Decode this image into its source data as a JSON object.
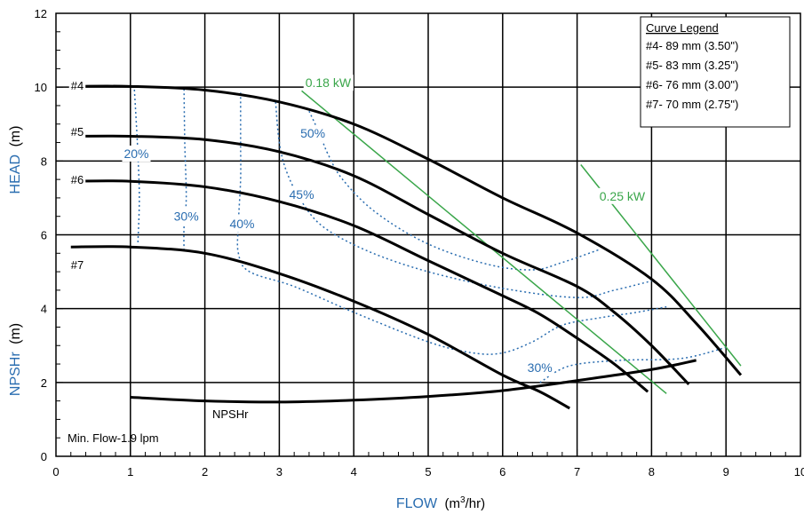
{
  "chart_data": {
    "type": "line",
    "xlim": [
      0,
      10
    ],
    "ylim": [
      0,
      12
    ],
    "x_ticks": [
      "0",
      "1",
      "2",
      "3",
      "4",
      "5",
      "6",
      "7",
      "8",
      "9",
      "10"
    ],
    "y_ticks": [
      "0",
      "2",
      "4",
      "6",
      "8",
      "10",
      "12"
    ],
    "grid": true,
    "xlabel": {
      "main": "FLOW",
      "unit_pre": "(m",
      "unit_sup": "3",
      "unit_post": "/hr)"
    },
    "ylabel_head": {
      "main": "HEAD",
      "unit": "(m)"
    },
    "ylabel_npsh": {
      "main": "NPSHr",
      "unit": "(m)"
    },
    "legend": {
      "title": "Curve Legend",
      "entries": [
        "#4- 89 mm (3.50\")",
        "#5- 83 mm (3.25\")",
        "#6- 76 mm (3.00\")",
        "#7- 70 mm (2.75\")"
      ]
    },
    "head_curves": [
      {
        "name": "#4",
        "label_at": [
          0.2,
          10.05
        ],
        "points": [
          [
            0.2,
            10.02
          ],
          [
            1,
            10.02
          ],
          [
            2,
            9.92
          ],
          [
            3,
            9.6
          ],
          [
            4,
            9.0
          ],
          [
            5,
            8.05
          ],
          [
            6,
            7.0
          ],
          [
            7,
            6.05
          ],
          [
            8,
            4.8
          ],
          [
            8.6,
            3.6
          ],
          [
            9.2,
            2.2
          ]
        ]
      },
      {
        "name": "#5",
        "label_at": [
          0.2,
          8.8
        ],
        "points": [
          [
            0.2,
            8.67
          ],
          [
            1,
            8.67
          ],
          [
            2,
            8.58
          ],
          [
            3,
            8.25
          ],
          [
            4,
            7.6
          ],
          [
            5,
            6.55
          ],
          [
            6,
            5.5
          ],
          [
            7,
            4.6
          ],
          [
            7.5,
            3.9
          ],
          [
            8,
            3.0
          ],
          [
            8.5,
            1.95
          ]
        ]
      },
      {
        "name": "#6",
        "label_at": [
          0.2,
          7.5
        ],
        "points": [
          [
            0.2,
            7.45
          ],
          [
            1,
            7.45
          ],
          [
            2,
            7.3
          ],
          [
            3,
            6.9
          ],
          [
            4,
            6.25
          ],
          [
            5,
            5.3
          ],
          [
            6,
            4.35
          ],
          [
            6.5,
            3.85
          ],
          [
            7,
            3.2
          ],
          [
            7.5,
            2.5
          ],
          [
            7.95,
            1.75
          ]
        ]
      },
      {
        "name": "#7",
        "label_at": [
          0.2,
          5.2
        ],
        "points": [
          [
            0.2,
            5.67
          ],
          [
            1,
            5.67
          ],
          [
            2,
            5.5
          ],
          [
            3,
            4.95
          ],
          [
            4,
            4.2
          ],
          [
            5,
            3.3
          ],
          [
            6,
            2.2
          ],
          [
            6.5,
            1.75
          ],
          [
            6.9,
            1.3
          ]
        ]
      }
    ],
    "npshr_curve": {
      "name": "NPSHr",
      "label_at": [
        2.1,
        1.15
      ],
      "points": [
        [
          1,
          1.6
        ],
        [
          2,
          1.5
        ],
        [
          3,
          1.47
        ],
        [
          4,
          1.52
        ],
        [
          5,
          1.62
        ],
        [
          6,
          1.78
        ],
        [
          7,
          2.05
        ],
        [
          8,
          2.35
        ],
        [
          8.6,
          2.6
        ]
      ]
    },
    "efficiency_curves": [
      {
        "label": "20%",
        "label_at": [
          1.08,
          8.2
        ],
        "points": [
          [
            1.05,
            10.05
          ],
          [
            1.08,
            9.0
          ],
          [
            1.1,
            8.2
          ],
          [
            1.12,
            7.0
          ],
          [
            1.1,
            5.75
          ]
        ]
      },
      {
        "label": "30%",
        "label_at": [
          1.75,
          6.5
        ],
        "points": [
          [
            1.72,
            9.95
          ],
          [
            1.73,
            8.5
          ],
          [
            1.75,
            7.0
          ],
          [
            1.72,
            6.2
          ],
          [
            1.72,
            5.6
          ]
        ]
      },
      {
        "label": "40%",
        "label_at": [
          2.5,
          6.3
        ],
        "points": [
          [
            2.48,
            9.85
          ],
          [
            2.48,
            8.5
          ],
          [
            2.48,
            7.5
          ],
          [
            2.45,
            6.3
          ],
          [
            2.45,
            5.5
          ],
          [
            2.6,
            5.0
          ],
          [
            3.2,
            4.6
          ],
          [
            4.0,
            3.9
          ],
          [
            5.0,
            3.1
          ],
          [
            5.6,
            2.8
          ],
          [
            6.0,
            2.8
          ],
          [
            6.4,
            3.1
          ],
          [
            6.8,
            3.55
          ],
          [
            7.3,
            3.75
          ],
          [
            7.8,
            3.9
          ],
          [
            8.2,
            4.05
          ]
        ]
      },
      {
        "label": "45%",
        "label_at": [
          3.3,
          7.1
        ],
        "points": [
          [
            2.95,
            9.6
          ],
          [
            3.0,
            8.5
          ],
          [
            3.1,
            7.7
          ],
          [
            3.3,
            6.9
          ],
          [
            3.6,
            6.2
          ],
          [
            4.2,
            5.55
          ],
          [
            5.0,
            5.0
          ],
          [
            6.0,
            4.55
          ],
          [
            7.0,
            4.3
          ],
          [
            7.5,
            4.5
          ],
          [
            8.0,
            4.75
          ]
        ]
      },
      {
        "label": "50%",
        "label_at": [
          3.45,
          8.75
        ],
        "points": [
          [
            3.4,
            9.35
          ],
          [
            3.55,
            8.7
          ],
          [
            3.65,
            8.2
          ],
          [
            3.85,
            7.5
          ],
          [
            4.3,
            6.6
          ],
          [
            5.0,
            5.75
          ],
          [
            5.8,
            5.2
          ],
          [
            6.4,
            5.05
          ],
          [
            6.8,
            5.25
          ],
          [
            7.3,
            5.6
          ]
        ]
      },
      {
        "label": "30%",
        "label_at": [
          6.5,
          2.4
        ],
        "points": [
          [
            6.5,
            2.0
          ],
          [
            6.9,
            2.45
          ],
          [
            7.6,
            2.6
          ],
          [
            8.4,
            2.65
          ],
          [
            9.0,
            2.95
          ]
        ]
      }
    ],
    "power_lines": [
      {
        "label": "0.18 kW",
        "label_at": [
          3.35,
          10.12
        ],
        "points": [
          [
            3.3,
            9.9
          ],
          [
            8.2,
            1.7
          ]
        ]
      },
      {
        "label": "0.25 kW",
        "label_at": [
          7.3,
          7.05
        ],
        "points": [
          [
            7.05,
            7.9
          ],
          [
            9.2,
            2.45
          ]
        ]
      }
    ],
    "annotation": "Min. Flow-1.9 lpm",
    "colors": {
      "head": "#000000",
      "efficiency": "#2a6db0",
      "power": "#3aa64a",
      "axis_label": "#2a6db0",
      "grid": "#000000"
    }
  }
}
